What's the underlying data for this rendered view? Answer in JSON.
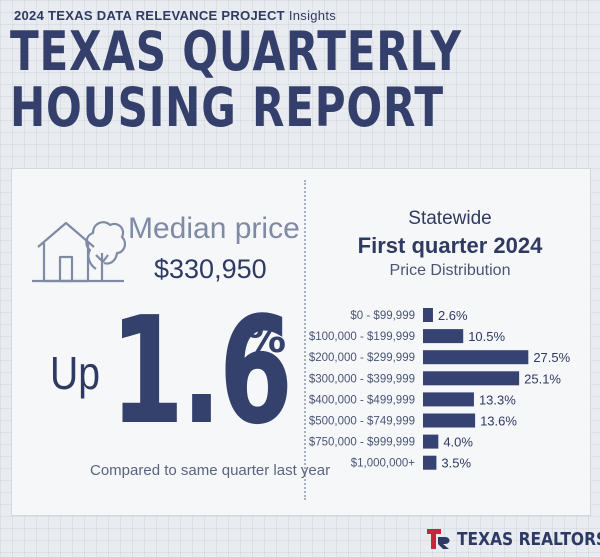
{
  "header": {
    "kicker_bold": "2024 TEXAS DATA RELEVANCE PROJECT",
    "kicker_light": "Insights",
    "title_line1": "TEXAS QUARTERLY",
    "title_line2": "HOUSING REPORT"
  },
  "left": {
    "median_label": "Median price",
    "median_value": "$330,950",
    "up_label": "Up",
    "change_value": "1.6",
    "change_unit": "%",
    "compare_text": "Compared to same quarter last year",
    "icon": "house-icon"
  },
  "right": {
    "line1": "Statewide",
    "line2": "First quarter 2024",
    "line3": "Price Distribution"
  },
  "chart_data": {
    "type": "bar",
    "orientation": "horizontal",
    "title": "Price Distribution",
    "categories": [
      "$0 - $99,999",
      "$100,000 - $199,999",
      "$200,000 - $299,999",
      "$300,000 - $399,999",
      "$400,000 - $499,999",
      "$500,000 - $749,999",
      "$750,000 - $999,999",
      "$1,000,000+"
    ],
    "values": [
      2.6,
      10.5,
      27.5,
      25.1,
      13.3,
      13.6,
      4.0,
      3.5
    ],
    "value_labels": [
      "2.6%",
      "10.5%",
      "27.5%",
      "25.1%",
      "13.3%",
      "13.6%",
      "4.0%",
      "3.5%"
    ],
    "bar_color": "#364272",
    "xlabel": "",
    "ylabel": ""
  },
  "footer": {
    "logo_text": "TEXAS REALTORS",
    "logo_red": "#c5283d",
    "logo_navy": "#2e3a66"
  }
}
